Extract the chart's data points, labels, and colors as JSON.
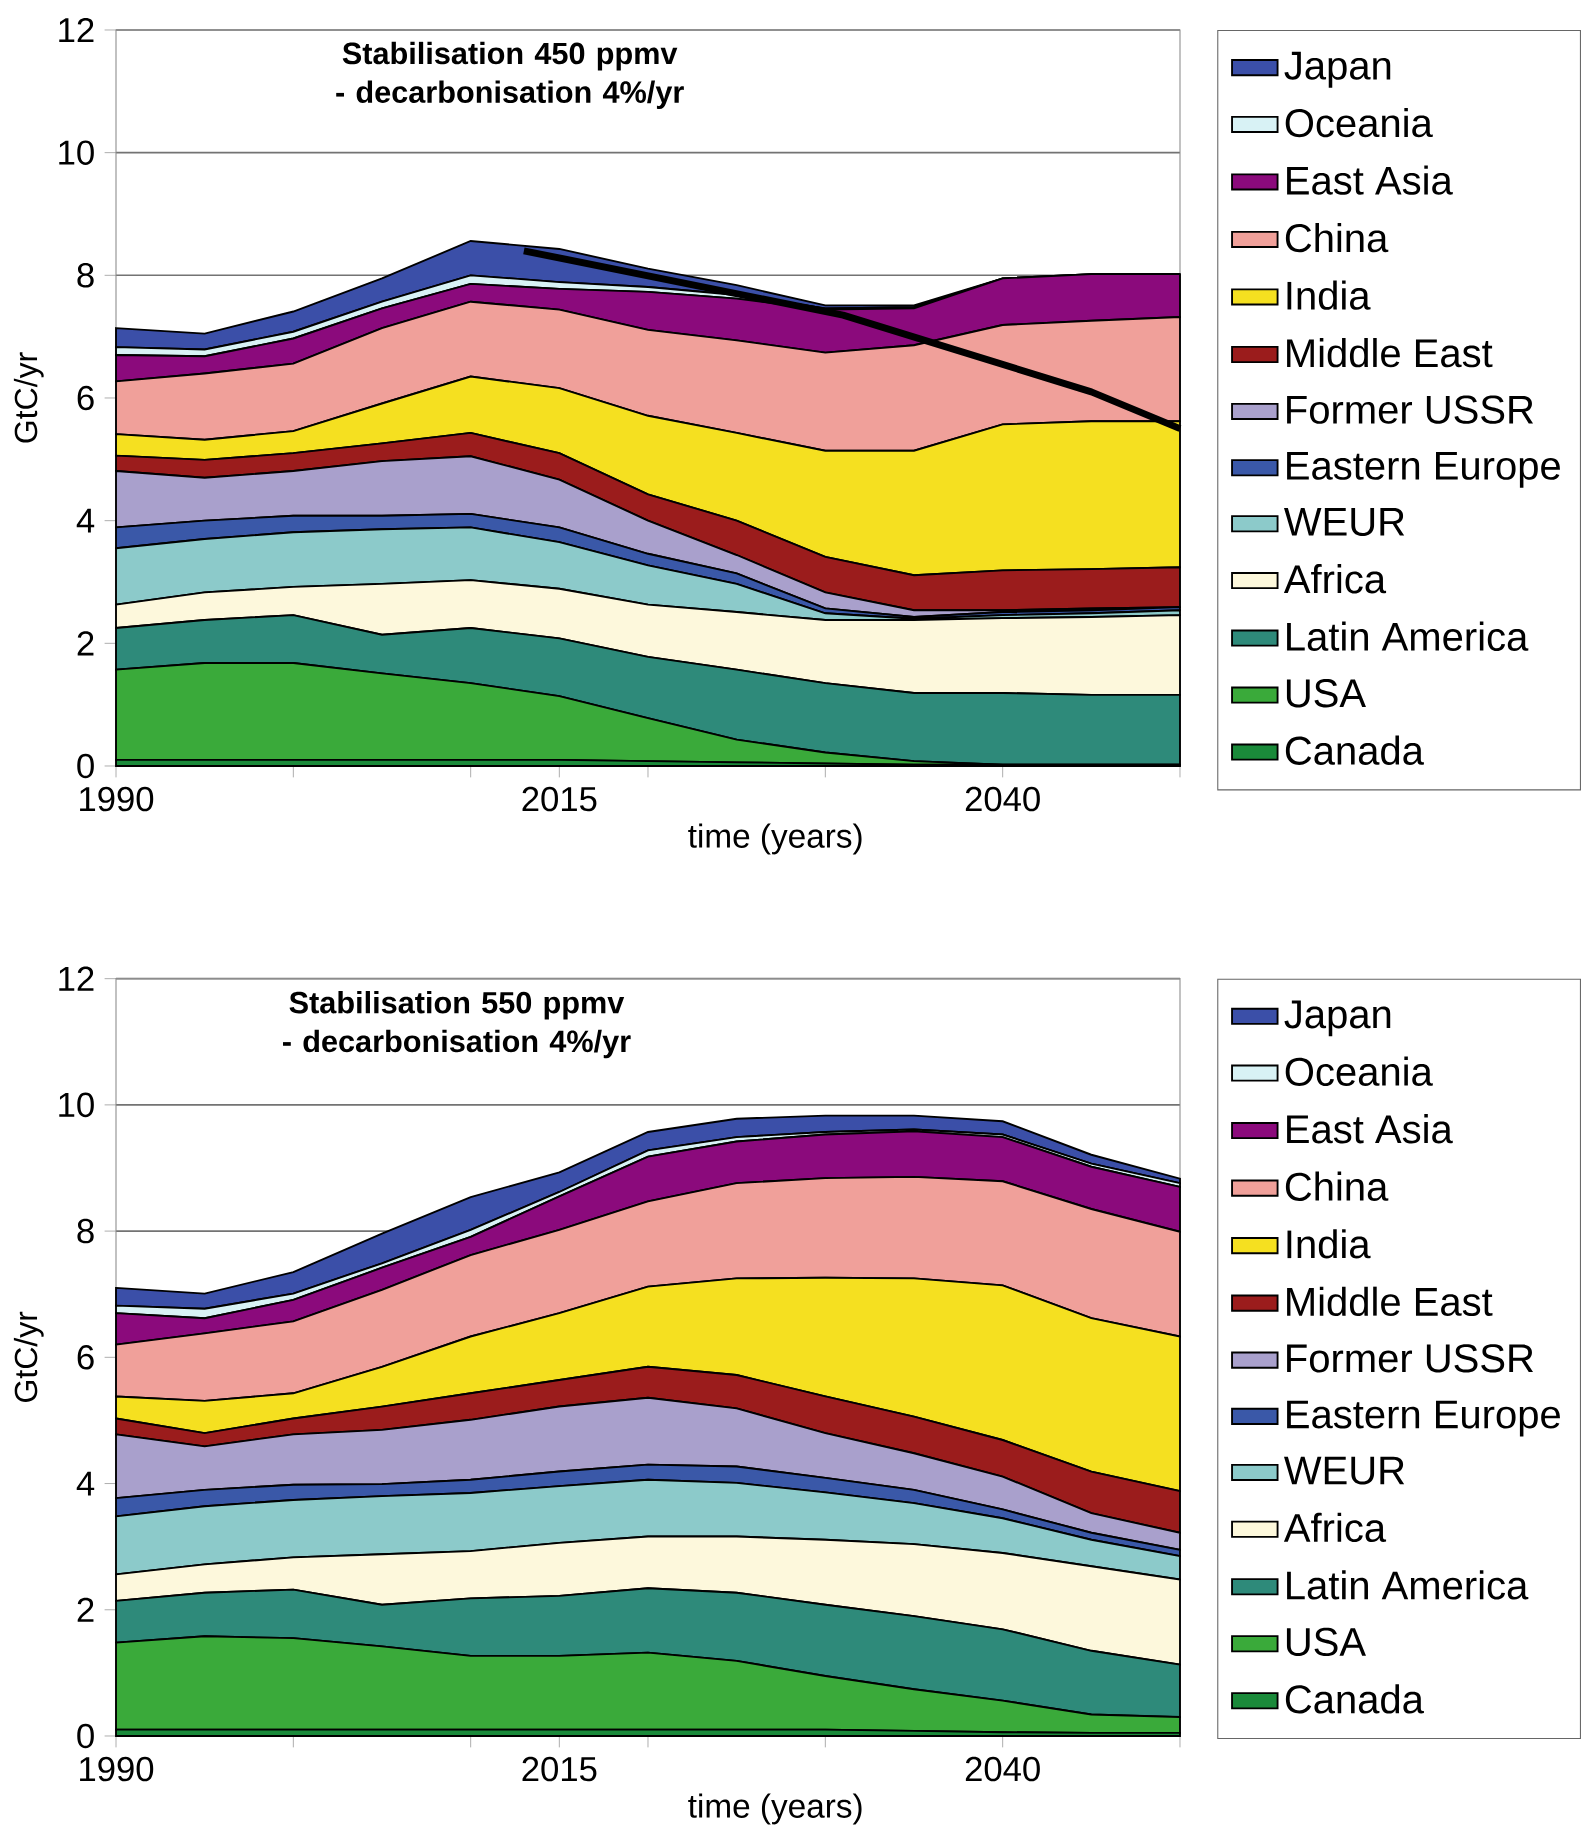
{
  "chart_data": [
    {
      "type": "area",
      "title": "Stabilisation 450 ppmv - decarbonisation 4%/yr",
      "xlabel": "time (years)",
      "ylabel": "GtC/yr",
      "stacked": true,
      "grid": "y",
      "legend": "right",
      "xlim": [
        1990,
        2050
      ],
      "ylim": [
        0,
        12
      ],
      "xticks": [
        1990,
        {
          "value": 2000,
          "label": null
        },
        {
          "value": 2010,
          "label": null
        },
        2015,
        {
          "value": 2020,
          "label": null
        },
        {
          "value": 2030,
          "label": null
        },
        2040,
        {
          "value": 2050,
          "label": null
        }
      ],
      "yticks": [
        0,
        2,
        4,
        6,
        8,
        10,
        12
      ],
      "x": [
        1990,
        1995,
        2000,
        2005,
        2010,
        2015,
        2020,
        2025,
        2030,
        2035,
        2040,
        2045,
        2050
      ],
      "series": [
        {
          "name": "Canada",
          "color": "#1a8a3a",
          "values": [
            0.1,
            0.1,
            0.1,
            0.1,
            0.1,
            0.1,
            0.08,
            0.06,
            0.04,
            0.02,
            0.02,
            0.02,
            0.02
          ]
        },
        {
          "name": "USA",
          "color": "#3aaa3a",
          "values": [
            1.47,
            1.58,
            1.58,
            1.41,
            1.25,
            1.04,
            0.7,
            0.37,
            0.18,
            0.06,
            0,
            0,
            0
          ]
        },
        {
          "name": "Latin America",
          "color": "#2e8a7a",
          "values": [
            0.68,
            0.7,
            0.78,
            0.63,
            0.9,
            0.94,
            1.0,
            1.14,
            1.13,
            1.11,
            1.17,
            1.14,
            1.14
          ]
        },
        {
          "name": "Africa",
          "color": "#fdf8dc",
          "values": [
            0.38,
            0.45,
            0.46,
            0.83,
            0.78,
            0.81,
            0.85,
            0.94,
            1.03,
            1.19,
            1.22,
            1.27,
            1.3
          ]
        },
        {
          "name": "WEUR",
          "color": "#8ccaca",
          "values": [
            0.92,
            0.87,
            0.89,
            0.89,
            0.86,
            0.76,
            0.64,
            0.46,
            0.11,
            0.02,
            0.05,
            0.06,
            0.08
          ]
        },
        {
          "name": "Eastern Europe",
          "color": "#3a58a8",
          "values": [
            0.34,
            0.3,
            0.27,
            0.22,
            0.22,
            0.24,
            0.19,
            0.17,
            0.08,
            0.03,
            0.05,
            0.05,
            0.05
          ]
        },
        {
          "name": "Former USSR",
          "color": "#a9a0cc",
          "values": [
            0.92,
            0.7,
            0.73,
            0.89,
            0.94,
            0.78,
            0.54,
            0.3,
            0.26,
            0.11,
            0.03,
            0.03,
            0.0
          ]
        },
        {
          "name": "Middle East",
          "color": "#9b1c1c",
          "values": [
            0.25,
            0.29,
            0.29,
            0.29,
            0.38,
            0.43,
            0.43,
            0.56,
            0.58,
            0.57,
            0.65,
            0.64,
            0.65
          ]
        },
        {
          "name": "India",
          "color": "#f5e020",
          "values": [
            0.35,
            0.33,
            0.36,
            0.65,
            0.92,
            1.06,
            1.28,
            1.43,
            1.73,
            2.03,
            2.38,
            2.41,
            2.38
          ]
        },
        {
          "name": "China",
          "color": "#f0a09a",
          "values": [
            0.86,
            1.08,
            1.1,
            1.23,
            1.22,
            1.28,
            1.4,
            1.51,
            1.6,
            1.72,
            1.62,
            1.64,
            1.7
          ]
        },
        {
          "name": "East Asia",
          "color": "#8b0a7c",
          "values": [
            0.43,
            0.28,
            0.41,
            0.32,
            0.29,
            0.34,
            0.62,
            0.68,
            0.7,
            0.6,
            0.76,
            0.76,
            0.7
          ]
        },
        {
          "name": "Oceania",
          "color": "#d8f2f5",
          "values": [
            0.13,
            0.11,
            0.11,
            0.11,
            0.14,
            0.11,
            0.08,
            0.06,
            0.02,
            0.02,
            0,
            0,
            0
          ]
        },
        {
          "name": "Japan",
          "color": "#3b4fa8",
          "values": [
            0.31,
            0.26,
            0.33,
            0.38,
            0.56,
            0.54,
            0.3,
            0.16,
            0.05,
            0.03,
            0,
            0,
            0
          ]
        },
        {
          "type": "line",
          "color": "#000000",
          "x": [
            2013,
            2031,
            2045,
            2050
          ],
          "values": [
            8.4,
            7.35,
            6.1,
            5.5
          ]
        }
      ]
    },
    {
      "type": "area",
      "title": "Stabilisation 550 ppmv - decarbonisation 4%/yr",
      "xlabel": "time (years)",
      "ylabel": "GtC/yr",
      "stacked": true,
      "grid": "y",
      "legend": "right",
      "xlim": [
        1990,
        2050
      ],
      "ylim": [
        0,
        12
      ],
      "xticks": [
        1990,
        {
          "value": 2000,
          "label": null
        },
        {
          "value": 2010,
          "label": null
        },
        2015,
        {
          "value": 2020,
          "label": null
        },
        {
          "value": 2030,
          "label": null
        },
        2040,
        {
          "value": 2050,
          "label": null
        }
      ],
      "yticks": [
        0,
        2,
        4,
        6,
        8,
        10,
        12
      ],
      "x": [
        1990,
        1995,
        2000,
        2005,
        2010,
        2015,
        2020,
        2025,
        2030,
        2035,
        2040,
        2045,
        2050
      ],
      "series": [
        {
          "name": "Canada",
          "color": "#1a8a3a",
          "values": [
            0.1,
            0.1,
            0.1,
            0.1,
            0.1,
            0.1,
            0.1,
            0.1,
            0.1,
            0.08,
            0.06,
            0.05,
            0.05
          ]
        },
        {
          "name": "USA",
          "color": "#3aaa3a",
          "values": [
            1.38,
            1.48,
            1.45,
            1.32,
            1.17,
            1.17,
            1.22,
            1.09,
            0.85,
            0.66,
            0.5,
            0.29,
            0.25
          ]
        },
        {
          "name": "Latin America",
          "color": "#2e8a7a",
          "values": [
            0.66,
            0.69,
            0.77,
            0.66,
            0.91,
            0.95,
            1.02,
            1.08,
            1.13,
            1.16,
            1.13,
            1.01,
            0.83
          ]
        },
        {
          "name": "Africa",
          "color": "#fdf8dc",
          "values": [
            0.42,
            0.45,
            0.51,
            0.8,
            0.75,
            0.84,
            0.82,
            0.89,
            1.03,
            1.14,
            1.21,
            1.34,
            1.35
          ]
        },
        {
          "name": "WEUR",
          "color": "#8ccaca",
          "values": [
            0.92,
            0.92,
            0.91,
            0.92,
            0.92,
            0.9,
            0.9,
            0.85,
            0.75,
            0.65,
            0.55,
            0.42,
            0.37
          ]
        },
        {
          "name": "Eastern Europe",
          "color": "#3a58a8",
          "values": [
            0.29,
            0.26,
            0.24,
            0.19,
            0.21,
            0.23,
            0.24,
            0.26,
            0.23,
            0.21,
            0.14,
            0.11,
            0.1
          ]
        },
        {
          "name": "Former USSR",
          "color": "#a9a0cc",
          "values": [
            1.01,
            0.69,
            0.8,
            0.86,
            0.95,
            1.03,
            1.06,
            0.92,
            0.71,
            0.58,
            0.52,
            0.31,
            0.27
          ]
        },
        {
          "name": "Middle East",
          "color": "#9b1c1c",
          "values": [
            0.25,
            0.21,
            0.25,
            0.37,
            0.42,
            0.42,
            0.49,
            0.53,
            0.58,
            0.58,
            0.58,
            0.66,
            0.66
          ]
        },
        {
          "name": "India",
          "color": "#f5e020",
          "values": [
            0.35,
            0.51,
            0.4,
            0.63,
            0.9,
            1.06,
            1.27,
            1.53,
            1.88,
            2.19,
            2.45,
            2.43,
            2.45
          ]
        },
        {
          "name": "China",
          "color": "#f0a09a",
          "values": [
            0.82,
            1.07,
            1.14,
            1.22,
            1.29,
            1.32,
            1.35,
            1.51,
            1.58,
            1.61,
            1.65,
            1.73,
            1.66
          ]
        },
        {
          "name": "East Asia",
          "color": "#8b0a7c",
          "values": [
            0.5,
            0.24,
            0.34,
            0.35,
            0.29,
            0.53,
            0.71,
            0.66,
            0.69,
            0.72,
            0.7,
            0.67,
            0.71
          ]
        },
        {
          "name": "Oceania",
          "color": "#d8f2f5",
          "values": [
            0.12,
            0.15,
            0.1,
            0.07,
            0.11,
            0.07,
            0.1,
            0.07,
            0.04,
            0.03,
            0.04,
            0.05,
            0.06
          ]
        },
        {
          "name": "Japan",
          "color": "#3b4fa8",
          "values": [
            0.28,
            0.24,
            0.34,
            0.47,
            0.52,
            0.31,
            0.29,
            0.29,
            0.26,
            0.22,
            0.21,
            0.14,
            0.07
          ]
        }
      ]
    }
  ]
}
